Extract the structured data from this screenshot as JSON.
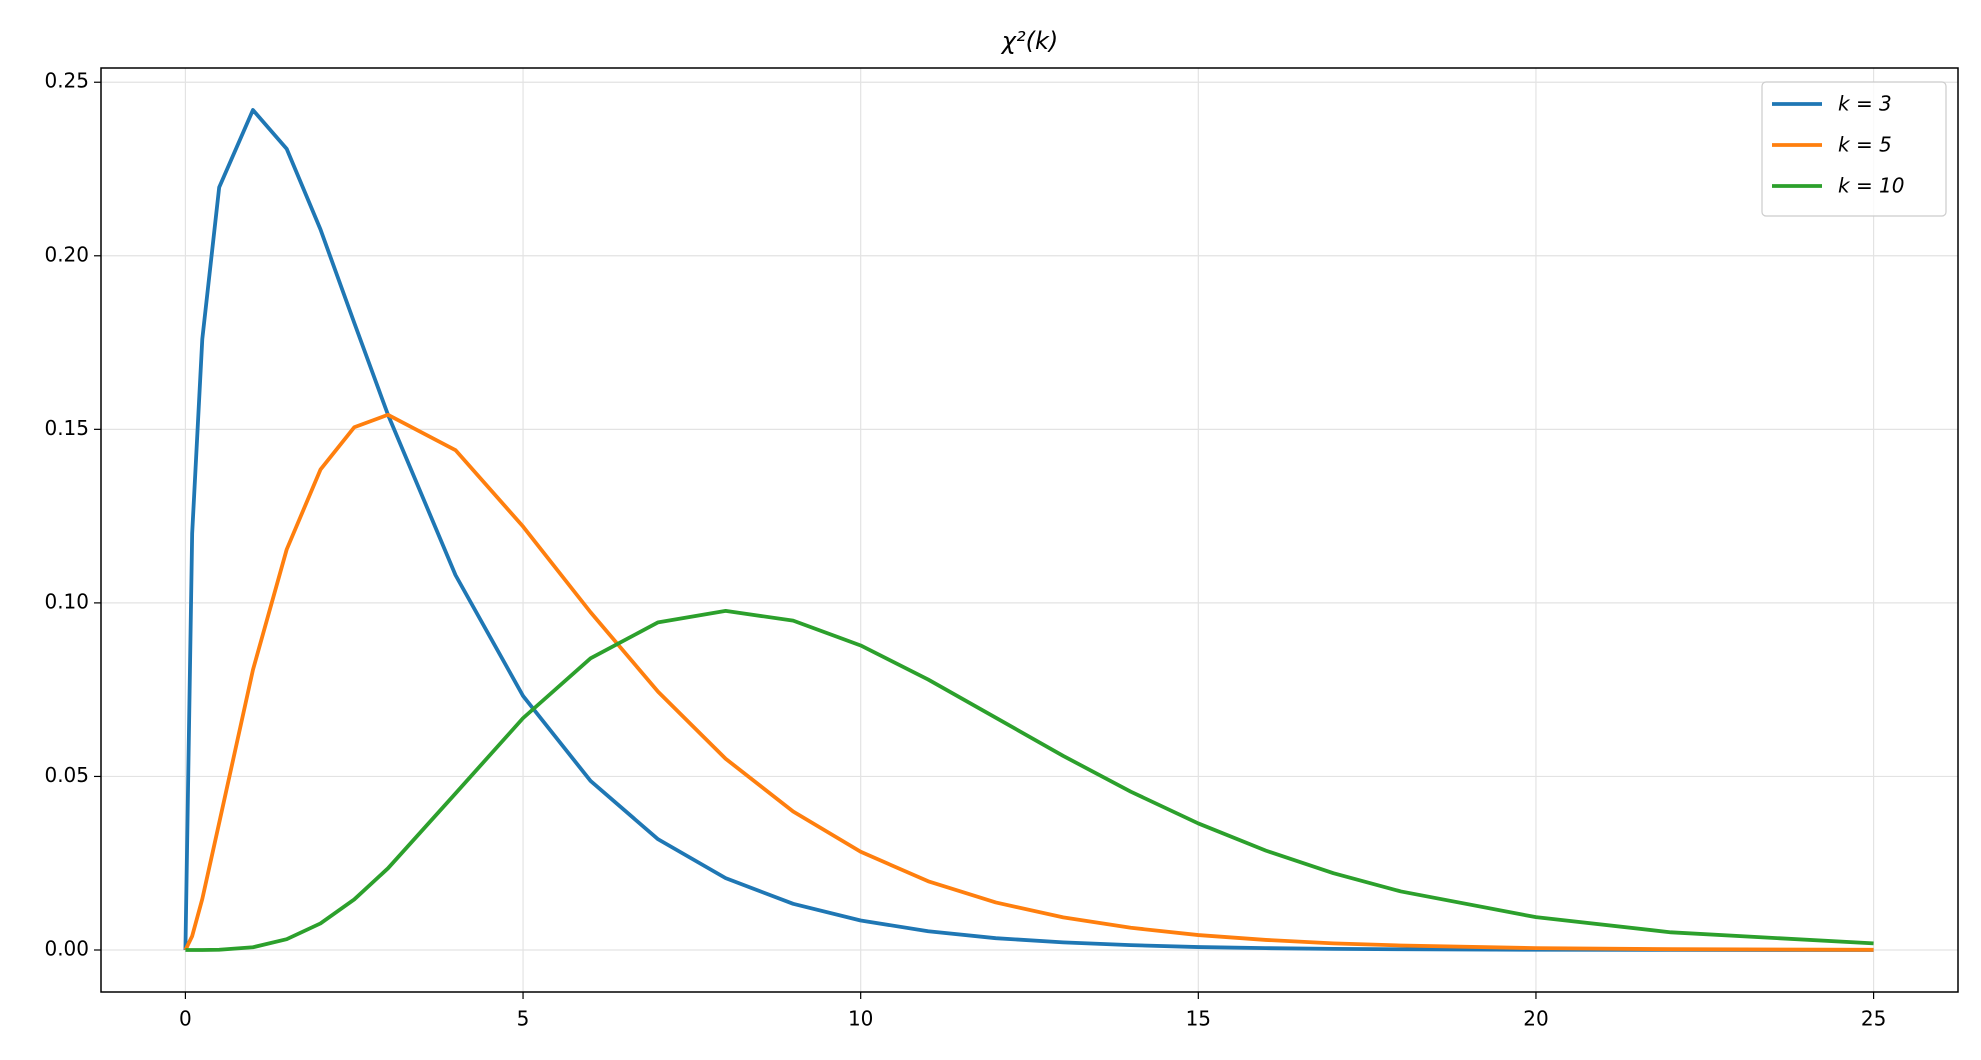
{
  "chart_data": {
    "type": "line",
    "title": "χ²(k)",
    "x": [
      0,
      0.1,
      0.25,
      0.5,
      1,
      1.5,
      2,
      2.5,
      3,
      4,
      5,
      6,
      7,
      8,
      9,
      10,
      11,
      12,
      13,
      14,
      15,
      16,
      17,
      18,
      20,
      22,
      25
    ],
    "series": [
      {
        "name": "k = 3",
        "color": "#1f77b4",
        "values": [
          0,
          0.12,
          0.176,
          0.2197,
          0.242,
          0.2308,
          0.2076,
          0.1807,
          0.1542,
          0.108,
          0.0732,
          0.0487,
          0.0319,
          0.0207,
          0.0133,
          0.0085,
          0.0054,
          0.0034,
          0.0022,
          0.0014,
          0.00085,
          0.00054,
          0.00033,
          0.00021,
          8e-05,
          3e-05,
          1e-05
        ]
      },
      {
        "name": "k = 5",
        "color": "#ff7f0e",
        "values": [
          0,
          0.004,
          0.0147,
          0.0366,
          0.0807,
          0.1154,
          0.1384,
          0.1506,
          0.1542,
          0.144,
          0.122,
          0.0973,
          0.0744,
          0.0551,
          0.0399,
          0.0283,
          0.0198,
          0.0137,
          0.0094,
          0.0064,
          0.0043,
          0.0029,
          0.0019,
          0.0013,
          0.00054,
          0.00023,
          6e-05
        ]
      },
      {
        "name": "k = 10",
        "color": "#2ca02c",
        "values": [
          0,
          0,
          0,
          6.3e-05,
          0.00079,
          0.00311,
          0.00766,
          0.01457,
          0.02353,
          0.04511,
          0.0668,
          0.08402,
          0.0944,
          0.09769,
          0.0949,
          0.08773,
          0.07791,
          0.06693,
          0.05591,
          0.04561,
          0.03646,
          0.02863,
          0.02213,
          0.01687,
          0.00946,
          0.00509,
          0.0019
        ]
      }
    ],
    "xlim": [
      -1.25,
      26.25
    ],
    "xticks": [
      0,
      5,
      10,
      15,
      20,
      25
    ],
    "ylim": [
      -0.0121,
      0.2541
    ],
    "yticks": [
      {
        "value": 0,
        "label": "0.00"
      },
      {
        "value": 0.05,
        "label": "0.05"
      },
      {
        "value": 0.1,
        "label": "0.10"
      },
      {
        "value": 0.15,
        "label": "0.15"
      },
      {
        "value": 0.2,
        "label": "0.20"
      },
      {
        "value": 0.25,
        "label": "0.25"
      }
    ],
    "grid": true,
    "legend": "upper right"
  }
}
